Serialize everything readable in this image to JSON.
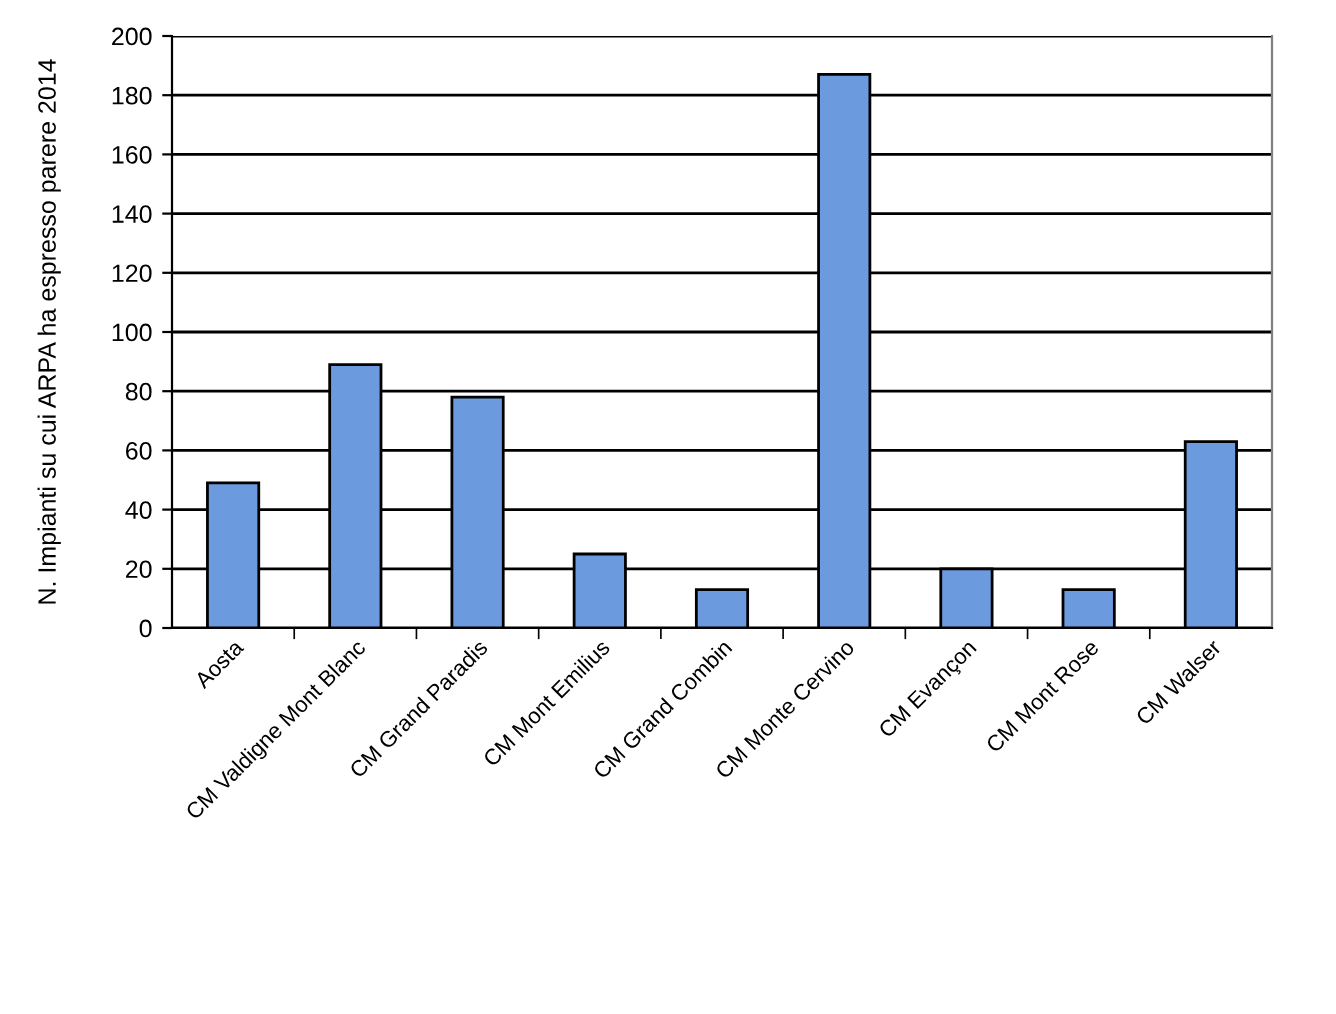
{
  "chart_data": {
    "type": "bar",
    "ylabel": "N. Impianti su cui ARPA ha espresso parere 2014",
    "categories": [
      "Aosta",
      "CM Valdigne Mont Blanc",
      "CM Grand Paradis",
      "CM Mont Emilius",
      "CM Grand Combin",
      "CM Monte Cervino",
      "CM Evançon",
      "CM Mont Rose",
      "CM Walser"
    ],
    "values": [
      49,
      89,
      78,
      25,
      13,
      187,
      20,
      13,
      63
    ],
    "color": "#6b9ade",
    "ylim": [
      0,
      200
    ],
    "yticks": [
      0,
      20,
      40,
      60,
      80,
      100,
      120,
      140,
      160,
      180,
      200
    ],
    "grid": "y",
    "legend": false
  }
}
